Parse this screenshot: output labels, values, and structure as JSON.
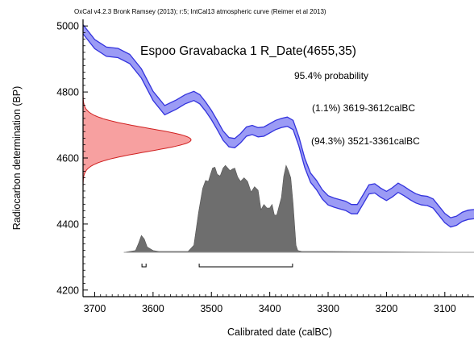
{
  "chart_data": {
    "type": "line",
    "credit": "OxCal v4.2.3 Bronk Ramsey (2013); r:5; IntCal13 atmospheric curve (Reimer et al 2013)",
    "title": "Espoo Gravabacka 1 R_Date(4655,35)",
    "annotations": [
      "95.4% probability",
      "(1.1%) 3619-3612calBC",
      "(94.3%) 3521-3361calBC"
    ],
    "xlabel": "Calibrated date (calBC)",
    "ylabel": "Radiocarbon determination (BP)",
    "x_reversed": true,
    "xlim": [
      3720,
      3050
    ],
    "ylim": [
      4180,
      5020
    ],
    "x_ticks": [
      3700,
      3600,
      3500,
      3400,
      3300,
      3200,
      3100
    ],
    "y_ticks": [
      4200,
      4400,
      4600,
      4800,
      5000
    ],
    "calibration_curve": {
      "x": [
        3720,
        3700,
        3680,
        3660,
        3640,
        3620,
        3600,
        3580,
        3560,
        3545,
        3530,
        3520,
        3510,
        3500,
        3490,
        3480,
        3470,
        3460,
        3450,
        3440,
        3430,
        3420,
        3410,
        3400,
        3390,
        3380,
        3370,
        3360,
        3350,
        3340,
        3330,
        3320,
        3310,
        3300,
        3290,
        3280,
        3270,
        3260,
        3250,
        3240,
        3230,
        3220,
        3210,
        3200,
        3190,
        3180,
        3170,
        3160,
        3150,
        3140,
        3130,
        3120,
        3110,
        3100,
        3090,
        3080,
        3070,
        3060,
        3050
      ],
      "y": [
        4990,
        4945,
        4922,
        4918,
        4900,
        4856,
        4788,
        4745,
        4762,
        4778,
        4788,
        4778,
        4756,
        4730,
        4700,
        4668,
        4648,
        4645,
        4660,
        4680,
        4685,
        4678,
        4680,
        4690,
        4700,
        4706,
        4710,
        4700,
        4650,
        4585,
        4540,
        4518,
        4490,
        4472,
        4465,
        4460,
        4455,
        4445,
        4445,
        4475,
        4505,
        4508,
        4495,
        4485,
        4496,
        4510,
        4500,
        4488,
        4478,
        4472,
        4470,
        4462,
        4440,
        4418,
        4405,
        4410,
        4422,
        4428,
        4430
      ],
      "error": 14,
      "color": "#3333dd",
      "fill_color": "#9b9bf5"
    },
    "radiocarbon_distribution": {
      "mean": 4655,
      "sd": 35,
      "fill_color": "#f7a0a0",
      "line_color": "#d02020"
    },
    "calibrated_distribution": {
      "x": [
        3650,
        3630,
        3625,
        3620,
        3615,
        3610,
        3600,
        3590,
        3540,
        3530,
        3522,
        3515,
        3510,
        3505,
        3502,
        3498,
        3494,
        3490,
        3485,
        3480,
        3476,
        3472,
        3468,
        3464,
        3460,
        3455,
        3450,
        3444,
        3438,
        3432,
        3426,
        3420,
        3415,
        3410,
        3405,
        3400,
        3396,
        3392,
        3388,
        3384,
        3380,
        3376,
        3372,
        3368,
        3364,
        3360,
        3355,
        3352,
        3345,
        3300,
        3040
      ],
      "density": [
        0,
        0.02,
        0.1,
        0.19,
        0.15,
        0.06,
        0.02,
        0.01,
        0.01,
        0.08,
        0.45,
        0.72,
        0.81,
        0.8,
        0.87,
        0.95,
        0.96,
        0.88,
        0.86,
        0.95,
        0.98,
        0.95,
        0.92,
        0.94,
        0.95,
        0.85,
        0.8,
        0.84,
        0.8,
        0.68,
        0.74,
        0.7,
        0.48,
        0.54,
        0.5,
        0.5,
        0.54,
        0.42,
        0.42,
        0.52,
        0.62,
        0.86,
        0.98,
        0.92,
        0.84,
        0.55,
        0.08,
        0.02,
        0.01,
        0.01,
        0
      ],
      "fill_color": "#6e6e6e"
    },
    "hpd_ranges": [
      {
        "from": 3619,
        "to": 3612
      },
      {
        "from": 3521,
        "to": 3361
      }
    ]
  }
}
